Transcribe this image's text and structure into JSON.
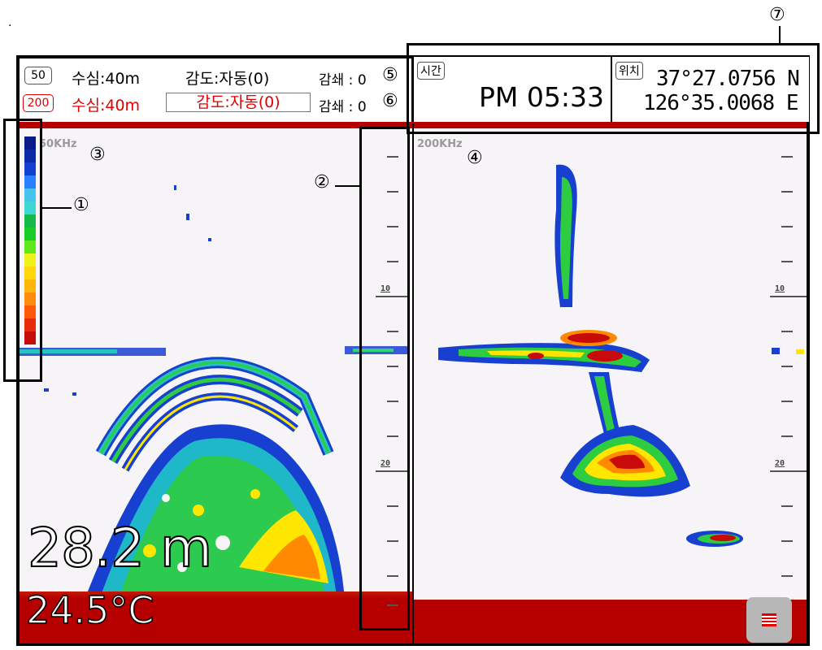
{
  "dot": ".",
  "header": {
    "ch1": {
      "badge": "50",
      "depth": "수심:40m",
      "gain": "감도:자동(0)",
      "attenuation": "감쇄 : 0"
    },
    "ch2": {
      "badge": "200",
      "depth": "수심:40m",
      "gain": "감도:자동(0)",
      "attenuation": "감쇄 : 0"
    },
    "time_label": "시간",
    "time_value": "PM 05:33",
    "position_label": "위치",
    "lat": "37°27.0756 N",
    "lon": "126°35.0068 E"
  },
  "left_panel": {
    "freq": "50KHz",
    "depth_readout": "28.2 m",
    "temperature": "24.5°C"
  },
  "right_panel": {
    "freq": "200KHz"
  },
  "scale_labels": [
    "10",
    "20"
  ],
  "callouts": [
    "①",
    "②",
    "③",
    "④",
    "⑤",
    "⑥",
    "⑦"
  ],
  "colors": {
    "seabed": "#b60000",
    "palette": [
      "#0a1a8c",
      "#0a2aa8",
      "#1040d0",
      "#2a7fff",
      "#47c4ee",
      "#3fd6d6",
      "#16b84a",
      "#18cc2a",
      "#5fe81a",
      "#f0f01a",
      "#ffd60a",
      "#ffb60a",
      "#ff8c0a",
      "#ff5a0a",
      "#e82a0a",
      "#c80a0a"
    ]
  }
}
